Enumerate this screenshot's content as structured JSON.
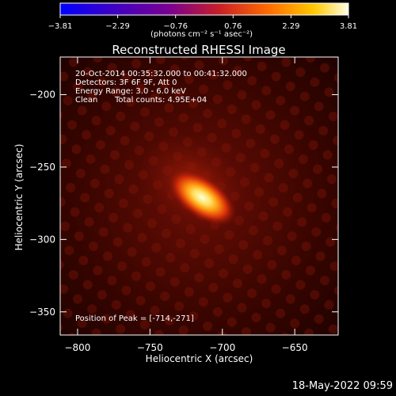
{
  "chart_data": {
    "type": "heatmap",
    "title": "Reconstructed RHESSI Image",
    "xlabel": "Heliocentric X (arcsec)",
    "ylabel": "Heliocentric Y (arcsec)",
    "xlim": [
      -812,
      -620
    ],
    "ylim": [
      -366,
      -174
    ],
    "x_ticks": [
      -800,
      -750,
      -700,
      -650
    ],
    "y_ticks": [
      -200,
      -250,
      -300,
      -350
    ],
    "x_tick_labels": [
      "−800",
      "−750",
      "−700",
      "−650"
    ],
    "y_tick_labels": [
      "−200",
      "−250",
      "−300",
      "−350"
    ],
    "colorbar": {
      "range": [
        -3.81,
        3.81
      ],
      "tick_values": [
        -3.81,
        -2.29,
        -0.76,
        0.76,
        2.29,
        3.81
      ],
      "tick_labels": [
        "−3.81",
        "−2.29",
        "−0.76",
        "0.76",
        "2.29",
        "3.81"
      ],
      "unit_label": "(photons cm⁻² s⁻¹ asec⁻²)",
      "colors": [
        "#0000ff",
        "#3a00c8",
        "#7a0090",
        "#c81e28",
        "#ff6a00",
        "#ffc800",
        "#ffffe6"
      ]
    },
    "source": {
      "peak_x": -714,
      "peak_y": -271,
      "peak_value": 3.81,
      "orientation": "elongated NW-SE"
    },
    "annotations": {
      "time_range": "20-Oct-2014 00:35:32.000 to 00:41:32.000",
      "detectors": "Detectors: 3F 6F 9F, Att 0",
      "energy_range": "Energy Range: 3.0 - 6.0 keV",
      "algorithm": "Clean",
      "total_counts": "Total counts: 4.95E+04",
      "peak_position": "Position of Peak = [-714,-271]"
    }
  },
  "footer": {
    "timestamp": "18-May-2022 09:59"
  },
  "colors": {
    "background": "#000000",
    "foreground": "#ffffff"
  }
}
